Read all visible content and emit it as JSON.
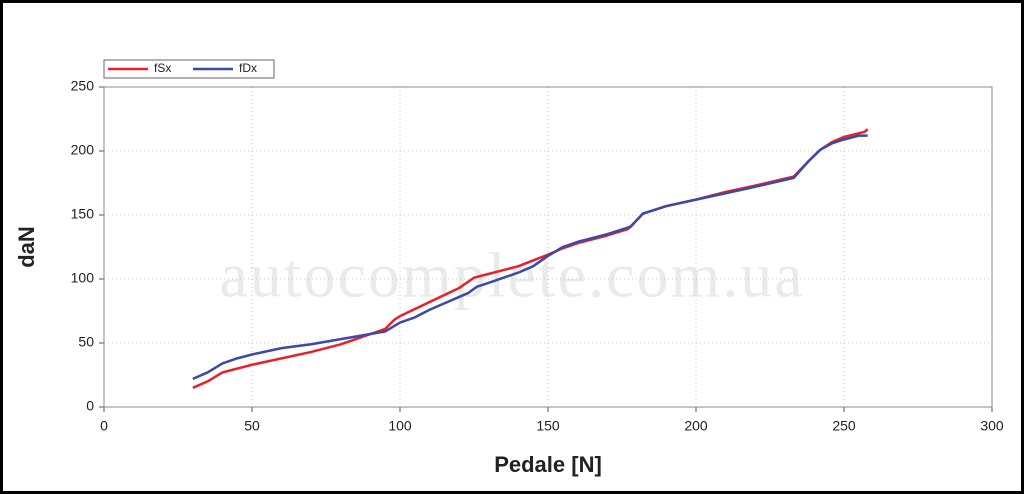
{
  "chart_data": {
    "type": "line",
    "xlabel": "Pedale [N]",
    "ylabel": "daN",
    "watermark": "autocomplete.com.ua",
    "xlim": [
      0,
      300
    ],
    "xticks": [
      0,
      50,
      100,
      150,
      200,
      250,
      300
    ],
    "ylim": [
      0,
      250
    ],
    "yticks": [
      0,
      50,
      100,
      150,
      200,
      250
    ],
    "grid": true,
    "legend": "upper left",
    "series": [
      {
        "name": "fSx",
        "color": "#e8202a",
        "x": [
          30,
          35,
          40,
          50,
          60,
          70,
          80,
          90,
          95,
          98,
          100,
          110,
          120,
          125,
          130,
          140,
          150,
          155,
          160,
          170,
          177,
          180,
          182,
          190,
          200,
          210,
          220,
          233,
          238,
          242,
          246,
          250,
          257,
          258
        ],
        "values": [
          15,
          20,
          27,
          33,
          38,
          43,
          49,
          57,
          61,
          68,
          71,
          82,
          93,
          101,
          104,
          110,
          119,
          124,
          128,
          134,
          139,
          146,
          151,
          157,
          162,
          168,
          173,
          180,
          192,
          201,
          207,
          211,
          215,
          217
        ]
      },
      {
        "name": "fDx",
        "color": "#3a4aa8",
        "x": [
          30,
          35,
          40,
          45,
          50,
          60,
          70,
          80,
          90,
          95,
          100,
          105,
          110,
          120,
          123,
          126,
          130,
          140,
          145,
          150,
          155,
          160,
          170,
          178,
          182,
          190,
          200,
          210,
          220,
          233,
          238,
          242,
          246,
          250,
          255,
          258
        ],
        "values": [
          22,
          27,
          34,
          38,
          41,
          46,
          49,
          53,
          57,
          59,
          66,
          70,
          76,
          86,
          89,
          94,
          97,
          105,
          110,
          118,
          125,
          129,
          135,
          141,
          151,
          157,
          162,
          167,
          172,
          179,
          192,
          201,
          206,
          209,
          212,
          212
        ]
      }
    ]
  }
}
